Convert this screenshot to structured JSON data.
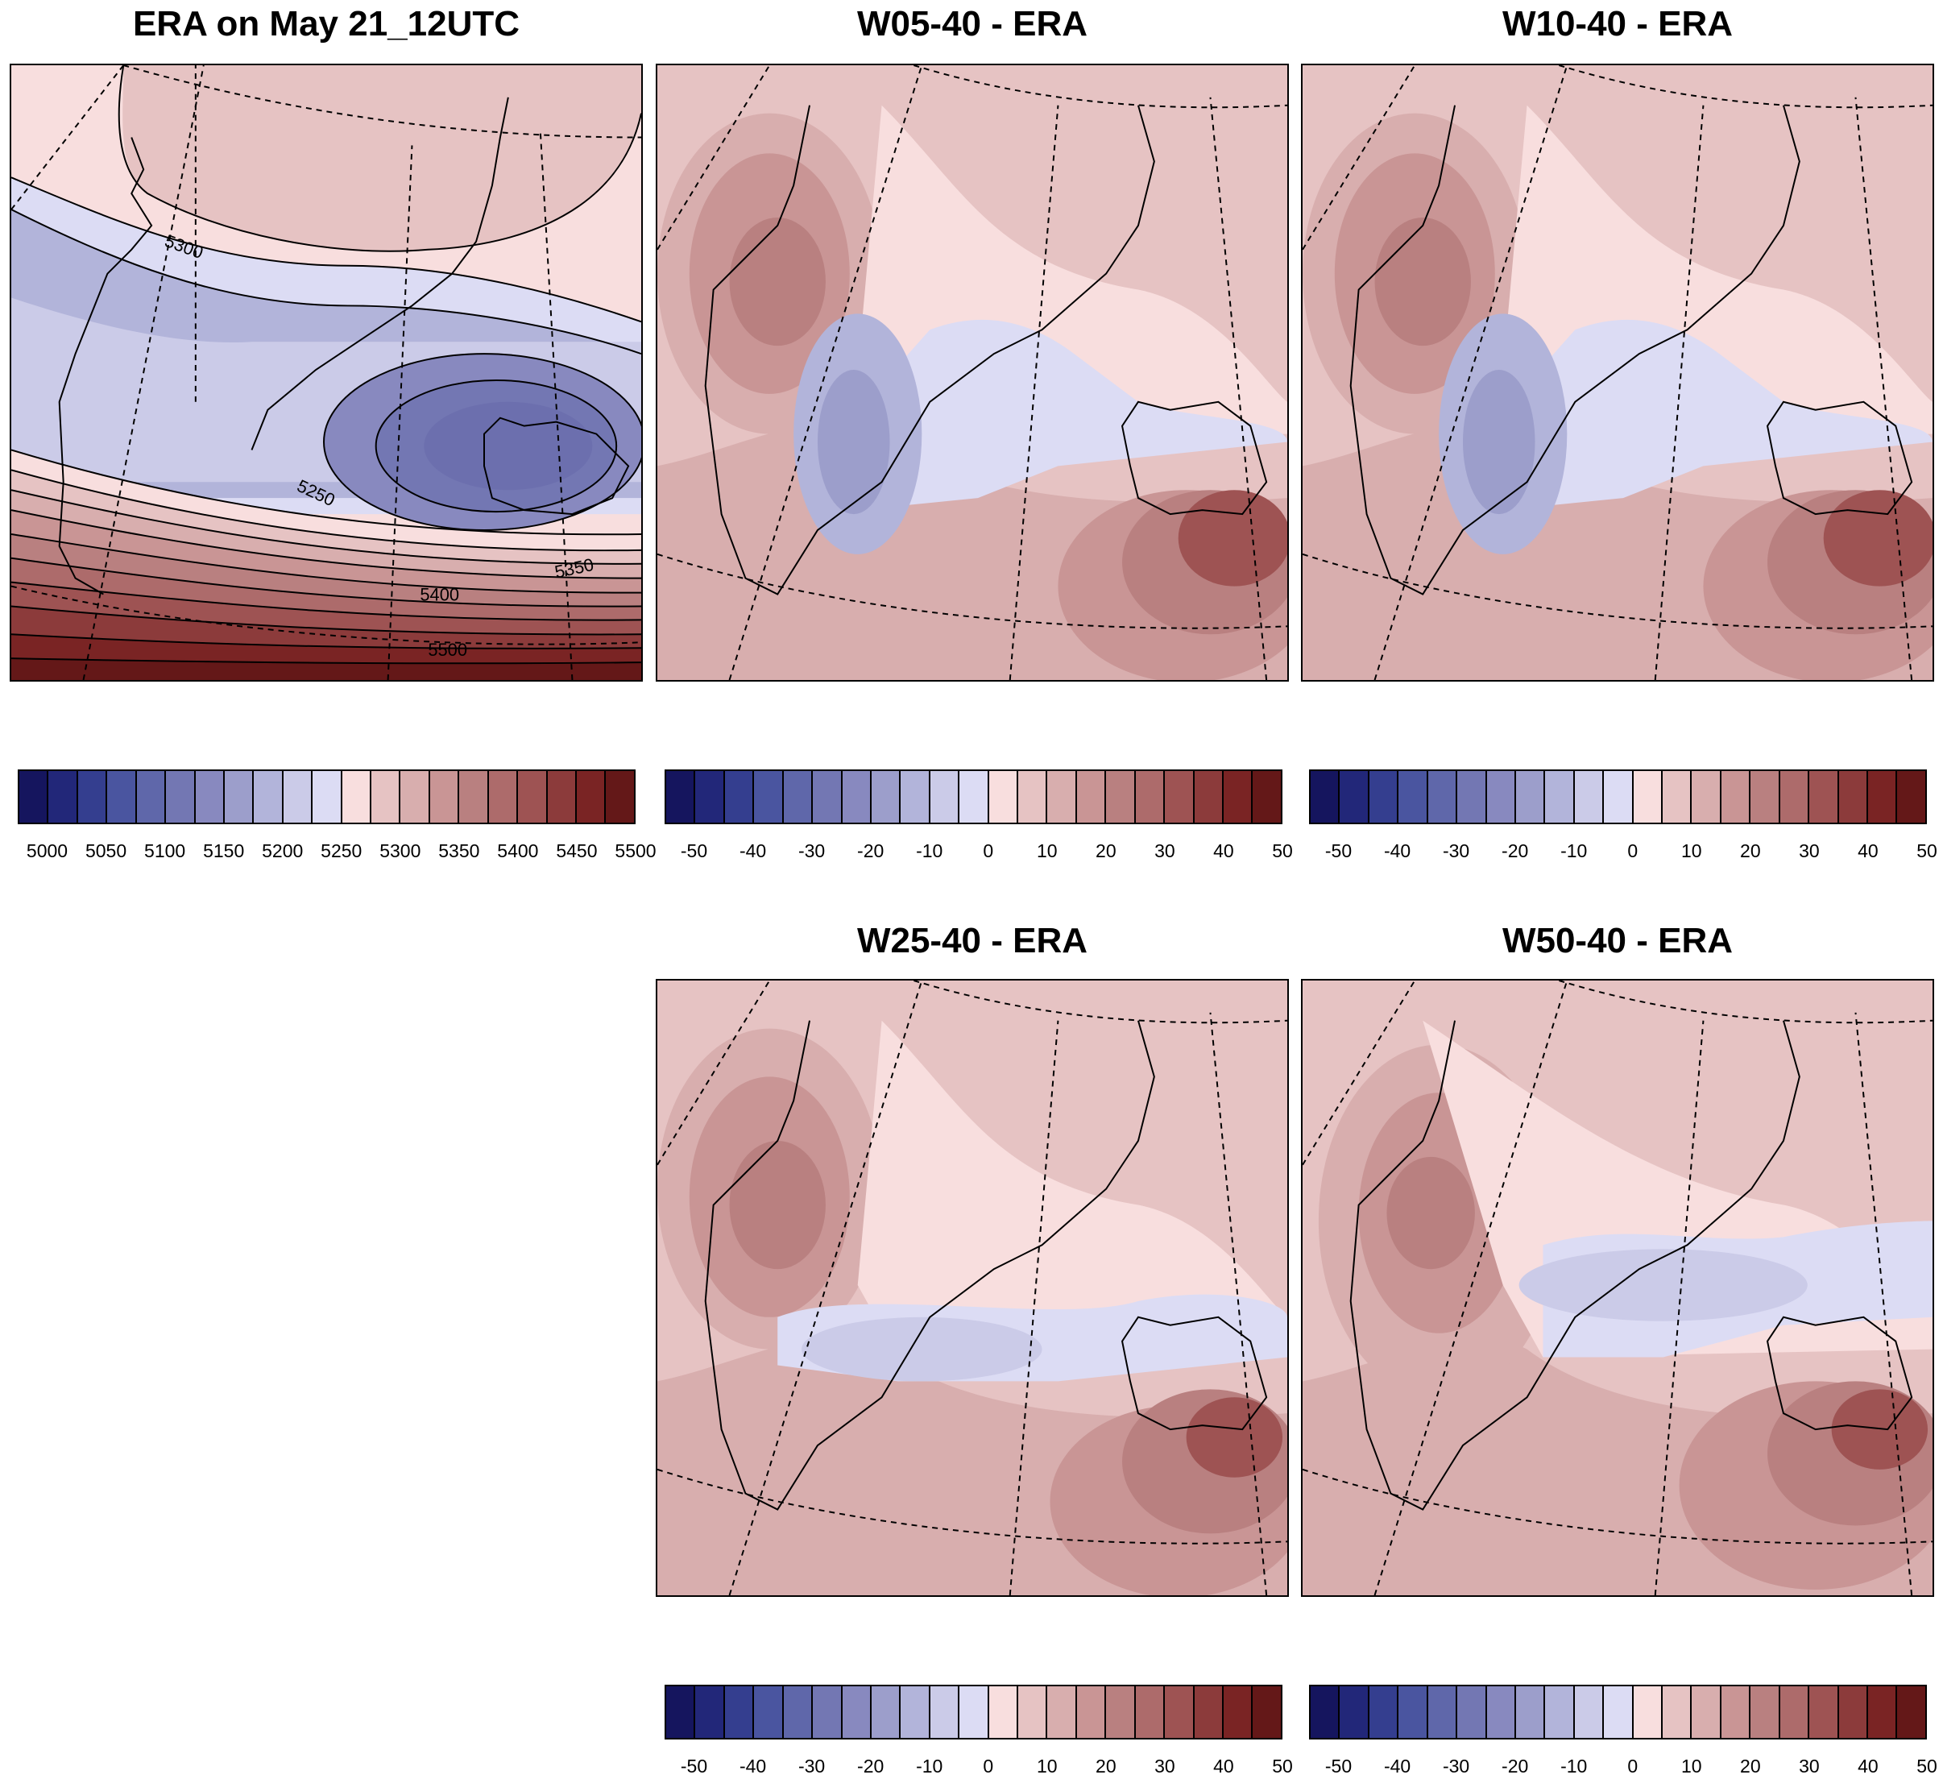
{
  "panels": [
    {
      "id": "era",
      "title": "ERA on May 21_12UTC",
      "contour_labels": [
        "5300",
        "5250",
        "5350",
        "5400",
        "5500"
      ]
    },
    {
      "id": "w05",
      "title": "W05-40 - ERA"
    },
    {
      "id": "w10",
      "title": "W10-40 - ERA"
    },
    {
      "id": "w25",
      "title": "W25-40 - ERA"
    },
    {
      "id": "w50",
      "title": "W50-40 - ERA"
    }
  ],
  "colorbars": {
    "absolute": {
      "ticks": [
        "5000",
        "5050",
        "5100",
        "5150",
        "5200",
        "5250",
        "5300",
        "5350",
        "5400",
        "5450",
        "5500"
      ],
      "colors": [
        "#15155e",
        "#222779",
        "#343e8f",
        "#4a55a0",
        "#5f67aa",
        "#7377b3",
        "#8889bf",
        "#9c9ecb",
        "#b2b4da",
        "#cbcbe8",
        "#dcdcf4",
        "#f8dede",
        "#e6c3c3",
        "#d8aeae",
        "#c99595",
        "#b98080",
        "#ad6b6b",
        "#9e5353",
        "#8c3b3b",
        "#7a2424",
        "#641818"
      ]
    },
    "difference": {
      "ticks": [
        "-50",
        "-40",
        "-30",
        "-20",
        "-10",
        "0",
        "10",
        "20",
        "30",
        "40",
        "50"
      ],
      "colors": [
        "#15155e",
        "#222779",
        "#343e8f",
        "#4a55a0",
        "#5f67aa",
        "#7377b3",
        "#8889bf",
        "#9c9ecb",
        "#b2b4da",
        "#cbcbe8",
        "#dcdcf4",
        "#f8dede",
        "#e6c3c3",
        "#d8aeae",
        "#c99595",
        "#b98080",
        "#ad6b6b",
        "#9e5353",
        "#8c3b3b",
        "#7a2424",
        "#641818"
      ]
    }
  }
}
